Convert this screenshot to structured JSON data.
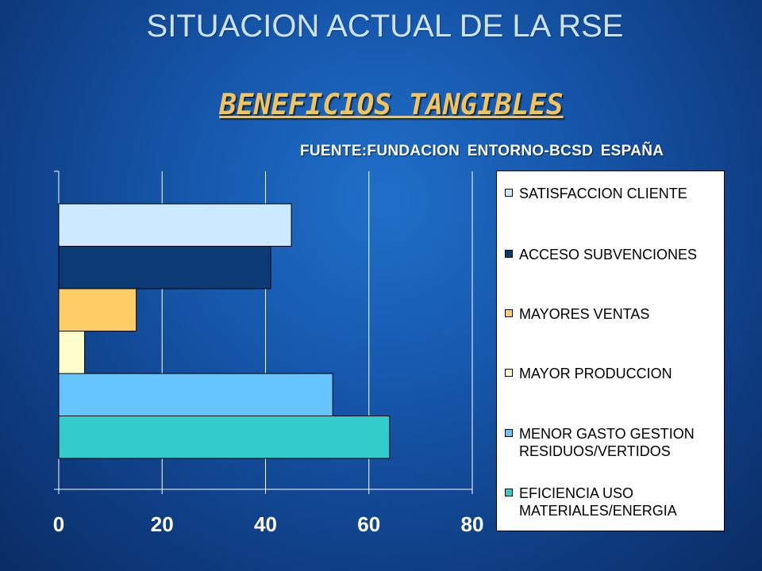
{
  "slide": {
    "title": "SITUACION ACTUAL DE LA RSE",
    "subtitle": "BENEFICIOS TANGIBLES",
    "source": "FUENTE:FUNDACION ENTORNO-BCSD ESPAÑA"
  },
  "chart_data": {
    "type": "bar",
    "orientation": "horizontal",
    "xlim": [
      0,
      80
    ],
    "xticks": [
      "0",
      "20",
      "40",
      "60",
      "80"
    ],
    "grid": true,
    "legend_position": "right",
    "series": [
      {
        "name": "SATISFACCION CLIENTE",
        "value": 45,
        "color": "#cce9ff"
      },
      {
        "name": "ACCESO SUBVENCIONES",
        "value": 41,
        "color": "#0c3a74"
      },
      {
        "name": "MAYORES VENTAS",
        "value": 15,
        "color": "#ffcc66"
      },
      {
        "name": "MAYOR PRODUCCION",
        "value": 5,
        "color": "#ffffcc"
      },
      {
        "name": "MENOR GASTO GESTION\nRESIDUOS/VERTIDOS",
        "value": 53,
        "color": "#66c4ff"
      },
      {
        "name": "EFICIENCIA USO\nMATERIALES/ENERGIA",
        "value": 64,
        "color": "#33cccc"
      }
    ]
  }
}
